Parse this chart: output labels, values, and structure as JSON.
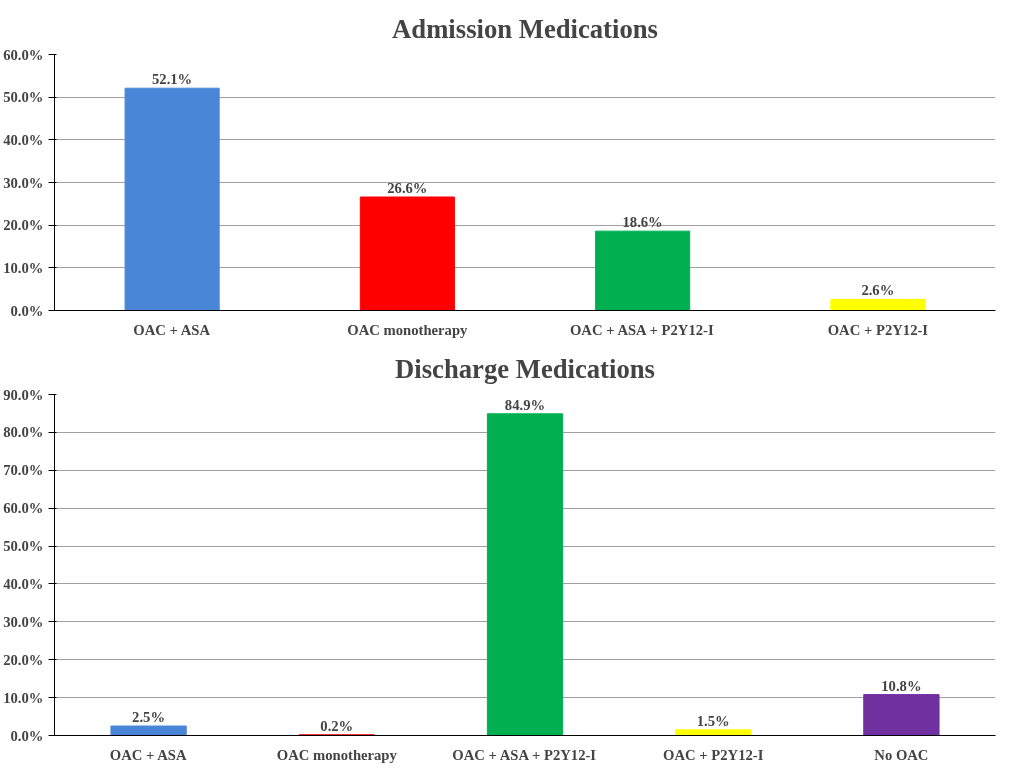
{
  "chart_data": [
    {
      "type": "bar",
      "title": "Admission Medications",
      "categories": [
        "OAC + ASA",
        "OAC monotherapy",
        "OAC + ASA + P2Y12-I",
        "OAC + P2Y12-I"
      ],
      "values": [
        52.1,
        26.6,
        18.6,
        2.6
      ],
      "colors": [
        "#4a86d8",
        "#ff0000",
        "#00b050",
        "#ffff00"
      ],
      "value_labels": [
        "52.1%",
        "26.6%",
        "18.6%",
        "2.6%"
      ],
      "ylim": [
        0,
        60
      ],
      "yticks": [
        {
          "value": 0,
          "label": "0.0%"
        },
        {
          "value": 10,
          "label": "10.0%"
        },
        {
          "value": 20,
          "label": "20.0%"
        },
        {
          "value": 30,
          "label": "30.0%"
        },
        {
          "value": 40,
          "label": "40.0%"
        },
        {
          "value": 50,
          "label": "50.0%"
        },
        {
          "value": 60,
          "label": "60.0%"
        }
      ],
      "grid": "y"
    },
    {
      "type": "bar",
      "title": "Discharge Medications",
      "categories": [
        "OAC + ASA",
        "OAC monotherapy",
        "OAC + ASA + P2Y12-I",
        "OAC + P2Y12-I",
        "No OAC"
      ],
      "values": [
        2.5,
        0.2,
        84.9,
        1.5,
        10.8
      ],
      "colors": [
        "#4a86d8",
        "#ff0000",
        "#00b050",
        "#ffff00",
        "#7030a0"
      ],
      "value_labels": [
        "2.5%",
        "0.2%",
        "84.9%",
        "1.5%",
        "10.8%"
      ],
      "ylim": [
        0,
        90
      ],
      "yticks": [
        {
          "value": 0,
          "label": "0.0%"
        },
        {
          "value": 10,
          "label": "10.0%"
        },
        {
          "value": 20,
          "label": "20.0%"
        },
        {
          "value": 30,
          "label": "30.0%"
        },
        {
          "value": 40,
          "label": "40.0%"
        },
        {
          "value": 50,
          "label": "50.0%"
        },
        {
          "value": 60,
          "label": "60.0%"
        },
        {
          "value": 70,
          "label": "70.0%"
        },
        {
          "value": 80,
          "label": "80.0%"
        },
        {
          "value": 90,
          "label": "90.0%"
        }
      ],
      "grid": "y"
    }
  ]
}
